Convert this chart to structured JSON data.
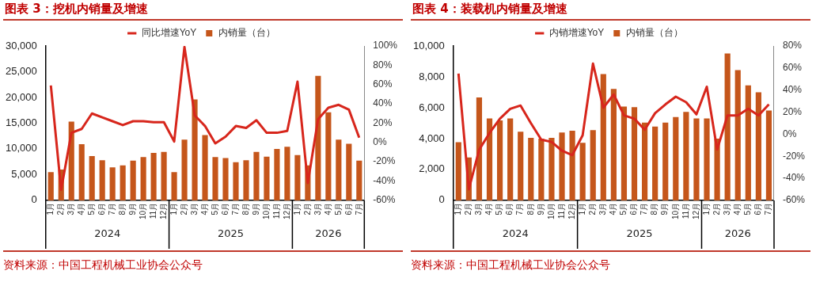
{
  "chart_data": [
    {
      "type": "bar",
      "title": "图表 3：挖机内销量及增速",
      "categories": [
        "1月",
        "2月",
        "3月",
        "4月",
        "5月",
        "6月",
        "7月",
        "8月",
        "9月",
        "10月",
        "11月",
        "12月",
        "1月",
        "2月",
        "3月",
        "4月",
        "5月",
        "6月",
        "7月",
        "8月",
        "9月",
        "10月",
        "11月",
        "12月",
        "1月",
        "2月",
        "3月",
        "4月",
        "5月",
        "6月",
        "7月"
      ],
      "series": [
        {
          "name": "内销量（台）",
          "color": "#c5561b",
          "values": [
            5500,
            6000,
            15300,
            10900,
            8600,
            7800,
            6400,
            6800,
            7700,
            8400,
            9200,
            9400,
            5500,
            11800,
            19600,
            12700,
            8400,
            8200,
            7400,
            7800,
            9400,
            8500,
            10000,
            10400,
            8800,
            6800,
            24200,
            17100,
            11800,
            11000,
            7700
          ]
        },
        {
          "name": "同比增速YoY",
          "type": "line",
          "axis": "y2",
          "color": "#d7261c",
          "values": [
            59,
            -49,
            10,
            14,
            30,
            26,
            22,
            18,
            22,
            22,
            21,
            21,
            1,
            99,
            28,
            17,
            -1,
            6,
            17,
            15,
            23,
            10,
            10,
            12,
            63,
            -42,
            24,
            36,
            39,
            34,
            5
          ]
        }
      ],
      "ylim": [
        0,
        30000
      ],
      "yticks": [
        0,
        {
          "value": 5000,
          "label": "5,000"
        },
        {
          "value": 10000,
          "label": "10,000"
        },
        {
          "value": 15000,
          "label": "15,000"
        },
        {
          "value": 20000,
          "label": "20,000"
        },
        {
          "value": 25000,
          "label": "25,000"
        },
        {
          "value": 30000,
          "label": "30,000"
        }
      ],
      "y2lim": [
        -60,
        100
      ],
      "y2ticks": [
        {
          "value": -60,
          "label": "-60%"
        },
        {
          "value": -40,
          "label": "-40%"
        },
        {
          "value": -20,
          "label": "-20%"
        },
        {
          "value": 0,
          "label": "0%"
        },
        {
          "value": 20,
          "label": "20%"
        },
        {
          "value": 40,
          "label": "40%"
        },
        {
          "value": 60,
          "label": "60%"
        },
        {
          "value": 80,
          "label": "80%"
        },
        {
          "value": 100,
          "label": "100%"
        }
      ],
      "legend": "top",
      "grid": false,
      "marker": "none",
      "annotations": [
        "2024",
        "2025",
        "2026",
        "资料来源：中国工程机械工业协会公众号"
      ]
    },
    {
      "type": "bar",
      "title": "图表 4：装载机内销量及增速",
      "categories": [
        "1月",
        "2月",
        "3月",
        "4月",
        "5月",
        "6月",
        "7月",
        "8月",
        "9月",
        "10月",
        "11月",
        "12月",
        "1月",
        "2月",
        "3月",
        "4月",
        "5月",
        "6月",
        "7月",
        "8月",
        "9月",
        "10月",
        "11月",
        "12月",
        "1月",
        "2月",
        "3月",
        "4月",
        "5月",
        "6月",
        "7月"
      ],
      "series": [
        {
          "name": "内销量（台）",
          "color": "#c5561b",
          "values": [
            3760,
            2780,
            6670,
            5310,
            5180,
            5310,
            4450,
            4050,
            4000,
            4050,
            4400,
            4510,
            3730,
            4550,
            8180,
            7220,
            6070,
            6040,
            5040,
            4780,
            5040,
            5400,
            5730,
            5310,
            5310,
            4000,
            9510,
            8440,
            7450,
            7000,
            5820
          ]
        },
        {
          "name": "内销增速YoY",
          "type": "line",
          "axis": "y2",
          "color": "#d7261c",
          "values": [
            55,
            -50,
            -14,
            1,
            14,
            23,
            26,
            10,
            -5,
            -7,
            -15,
            -19,
            -1,
            64,
            24,
            36,
            17,
            14,
            4,
            19,
            27,
            34,
            29,
            18,
            43,
            -14,
            17,
            17,
            23,
            17,
            27
          ]
        }
      ],
      "ylim": [
        0,
        10000
      ],
      "yticks": [
        0,
        {
          "value": 2000,
          "label": "2,000"
        },
        {
          "value": 4000,
          "label": "4,000"
        },
        {
          "value": 6000,
          "label": "6,000"
        },
        {
          "value": 8000,
          "label": "8,000"
        },
        {
          "value": 10000,
          "label": "10,000"
        }
      ],
      "y2lim": [
        -60,
        80
      ],
      "y2ticks": [
        {
          "value": -60,
          "label": "-60%"
        },
        {
          "value": -40,
          "label": "-40%"
        },
        {
          "value": -20,
          "label": "-20%"
        },
        {
          "value": 0,
          "label": "0%"
        },
        {
          "value": 20,
          "label": "20%"
        },
        {
          "value": 40,
          "label": "40%"
        },
        {
          "value": 60,
          "label": "60%"
        },
        {
          "value": 80,
          "label": "80%"
        }
      ],
      "legend": "top",
      "grid": false,
      "marker": "none",
      "annotations": [
        "2024",
        "2025",
        "2026",
        "资料来源：中国工程机械工业协会公众号"
      ]
    }
  ]
}
